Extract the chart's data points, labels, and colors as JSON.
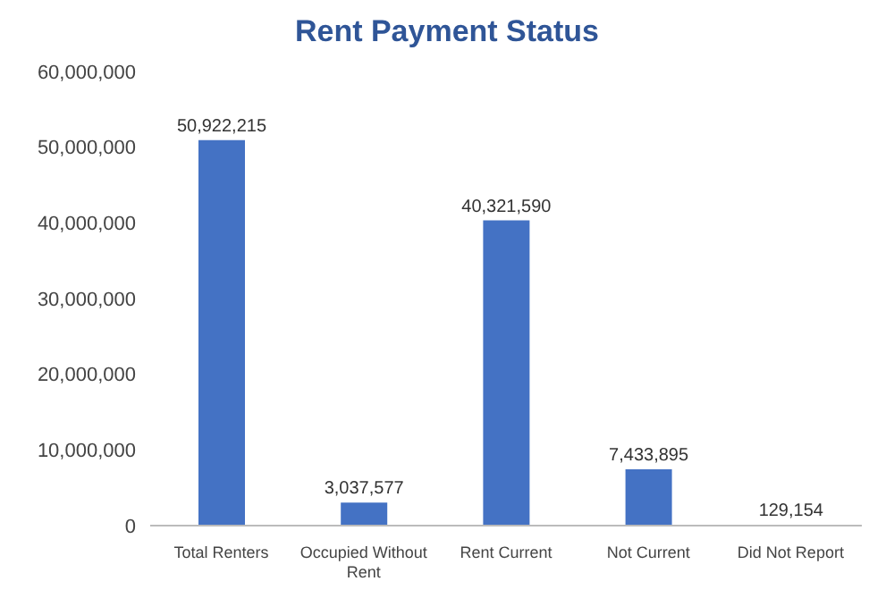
{
  "chart_data": {
    "type": "bar",
    "title": "Rent Payment Status",
    "categories": [
      "Total Renters",
      "Occupied Without Rent",
      "Rent Current",
      "Not Current",
      "Did Not Report"
    ],
    "values": [
      50922215,
      3037577,
      40321590,
      7433895,
      129154
    ],
    "value_labels": [
      "50,922,215",
      "3,037,577",
      "40,321,590",
      "7,433,895",
      "129,154"
    ],
    "color": "#4472c4",
    "ylim": [
      0,
      60000000
    ],
    "yticks": [
      0,
      {
        "value": 10000000,
        "label": "10,000,000"
      },
      {
        "value": 20000000,
        "label": "20,000,000"
      },
      {
        "value": 30000000,
        "label": "30,000,000"
      },
      {
        "value": 40000000,
        "label": "40,000,000"
      },
      {
        "value": 50000000,
        "label": "50,000,000"
      },
      {
        "value": 60000000,
        "label": "60,000,000"
      }
    ]
  }
}
